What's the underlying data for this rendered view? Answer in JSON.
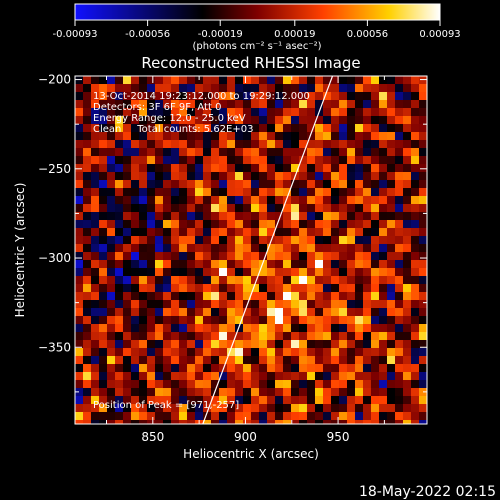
{
  "chart_data": {
    "type": "heatmap",
    "title": "Reconstructed RHESSI Image",
    "xlabel": "Heliocentric X (arcsec)",
    "ylabel": "Heliocentric Y (arcsec)",
    "xlim": [
      808,
      998
    ],
    "ylim": [
      -393,
      -198
    ],
    "xticks": [
      850,
      900,
      950
    ],
    "yticks": [
      -200,
      -250,
      -300,
      -350
    ],
    "xtick_labels": [
      "850",
      "900",
      "950"
    ],
    "ytick_labels": [
      "−200",
      "−250",
      "−300",
      "−350"
    ],
    "colorbar": {
      "range": [
        -0.00093,
        0.00093
      ],
      "ticks": [
        -0.00093,
        -0.00056,
        -0.00019,
        0.00019,
        0.00056,
        0.00093
      ],
      "tick_labels": [
        "-0.00093",
        "-0.00056",
        "-0.00019",
        "0.00019",
        "0.00056",
        "0.00093"
      ],
      "unit_label": "(photons cm⁻² s⁻¹ asec⁻²)",
      "colormap": [
        "#1010ff",
        "#000000",
        "#7f0000",
        "#ff4000",
        "#ffd000",
        "#ffffff"
      ]
    },
    "annotations": [
      "13-Oct-2014 19:23:12.000 to 19:29:12.000",
      "Detectors: 3F 6F 9F, Att 0",
      "Energy Range: 12.0 - 25.0 keV",
      "Clean     Total counts: 5.62E+03"
    ],
    "peak_label": "Position of Peak = [971,-257]",
    "limb_line": {
      "x": [
        877,
        947
      ],
      "y": [
        -393,
        -198
      ]
    }
  },
  "timestamp": "18-May-2022 02:15"
}
